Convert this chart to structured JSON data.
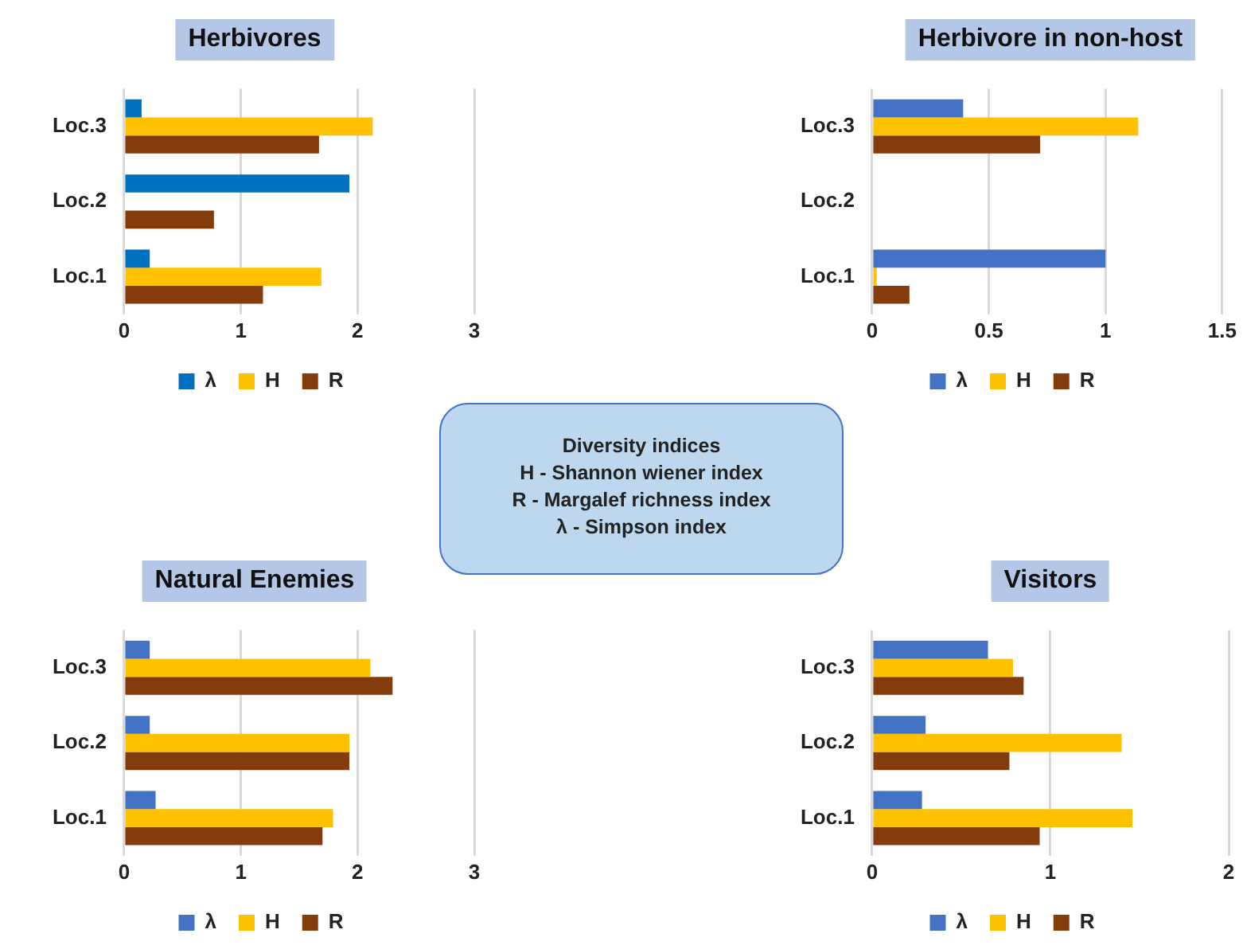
{
  "chart_data": [
    {
      "type": "bar",
      "orientation": "horizontal",
      "title": "Herbivores",
      "categories": [
        "Loc.3",
        "Loc.2",
        "Loc.1"
      ],
      "xlim": [
        0,
        3
      ],
      "xticks": [
        0,
        1,
        2,
        3
      ],
      "grid": "x",
      "legend": "bottom",
      "series": [
        {
          "name": "λ",
          "color": "#0070c0",
          "values": [
            0.15,
            1.93,
            0.22
          ]
        },
        {
          "name": "H",
          "color": "#ffc000",
          "values": [
            2.13,
            null,
            1.69
          ]
        },
        {
          "name": "R",
          "color": "#843c0c",
          "values": [
            1.67,
            0.77,
            1.19
          ]
        }
      ]
    },
    {
      "type": "bar",
      "orientation": "horizontal",
      "title": "Herbivore  in non-host",
      "categories": [
        "Loc.3",
        "Loc.2",
        "Loc.1"
      ],
      "xlim": [
        0,
        1.5
      ],
      "xticks": [
        0,
        0.5,
        1,
        1.5
      ],
      "grid": "x",
      "legend": "bottom",
      "series": [
        {
          "name": "λ",
          "color": "#4472c4",
          "values": [
            0.39,
            null,
            1.0
          ]
        },
        {
          "name": "H",
          "color": "#ffc000",
          "values": [
            1.14,
            null,
            0.02
          ]
        },
        {
          "name": "R",
          "color": "#843c0c",
          "values": [
            0.72,
            null,
            0.16
          ]
        }
      ]
    },
    {
      "type": "bar",
      "orientation": "horizontal",
      "title": "Natural  Enemies",
      "categories": [
        "Loc.3",
        "Loc.2",
        "Loc.1"
      ],
      "xlim": [
        0,
        3
      ],
      "xticks": [
        0,
        1,
        2,
        3
      ],
      "grid": "x",
      "legend": "bottom",
      "series": [
        {
          "name": "λ",
          "color": "#4472c4",
          "values": [
            0.22,
            0.22,
            0.27
          ]
        },
        {
          "name": "H",
          "color": "#ffc000",
          "values": [
            2.11,
            1.93,
            1.79
          ]
        },
        {
          "name": "R",
          "color": "#843c0c",
          "values": [
            2.3,
            1.93,
            1.7
          ]
        }
      ]
    },
    {
      "type": "bar",
      "orientation": "horizontal",
      "title": "Visitors",
      "categories": [
        "Loc.3",
        "Loc.2",
        "Loc.1"
      ],
      "xlim": [
        0,
        2
      ],
      "xticks": [
        0,
        1,
        2
      ],
      "grid": "x",
      "legend": "bottom",
      "series": [
        {
          "name": "λ",
          "color": "#4472c4",
          "values": [
            0.65,
            0.3,
            0.28
          ]
        },
        {
          "name": "H",
          "color": "#ffc000",
          "values": [
            0.79,
            1.4,
            1.46
          ]
        },
        {
          "name": "R",
          "color": "#843c0c",
          "values": [
            0.85,
            0.77,
            0.94
          ]
        }
      ]
    },
    {
      "type": "other",
      "title": "Diversity indices",
      "annotations": [
        "H - Shannon wiener index",
        "R - Margalef richness index",
        "λ - Simpson index"
      ]
    }
  ]
}
